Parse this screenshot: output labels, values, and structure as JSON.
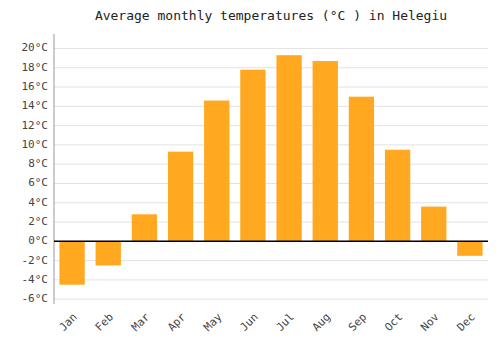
{
  "chart_data": {
    "type": "bar",
    "title": "Average monthly temperatures (°C ) in Helegiu",
    "categories": [
      "Jan",
      "Feb",
      "Mar",
      "Apr",
      "May",
      "Jun",
      "Jul",
      "Aug",
      "Sep",
      "Oct",
      "Nov",
      "Dec"
    ],
    "values": [
      -4.5,
      -2.5,
      2.8,
      9.3,
      14.6,
      17.8,
      19.3,
      18.7,
      15.0,
      9.5,
      3.6,
      -1.5
    ],
    "color": "#FFA820",
    "ylim": [
      -6.5,
      21.5
    ],
    "yticks": [
      {
        "value": -6,
        "label": "-6°C"
      },
      {
        "value": -4,
        "label": "-4°C"
      },
      {
        "value": -2,
        "label": "-2°C"
      },
      {
        "value": 0,
        "label": "0°C"
      },
      {
        "value": 2,
        "label": "2°C"
      },
      {
        "value": 4,
        "label": "4°C"
      },
      {
        "value": 6,
        "label": "6°C"
      },
      {
        "value": 8,
        "label": "8°C"
      },
      {
        "value": 10,
        "label": "10°C"
      },
      {
        "value": 12,
        "label": "12°C"
      },
      {
        "value": 14,
        "label": "14°C"
      },
      {
        "value": 16,
        "label": "16°C"
      },
      {
        "value": 18,
        "label": "18°C"
      },
      {
        "value": 20,
        "label": "20°C"
      }
    ],
    "grid": true
  }
}
